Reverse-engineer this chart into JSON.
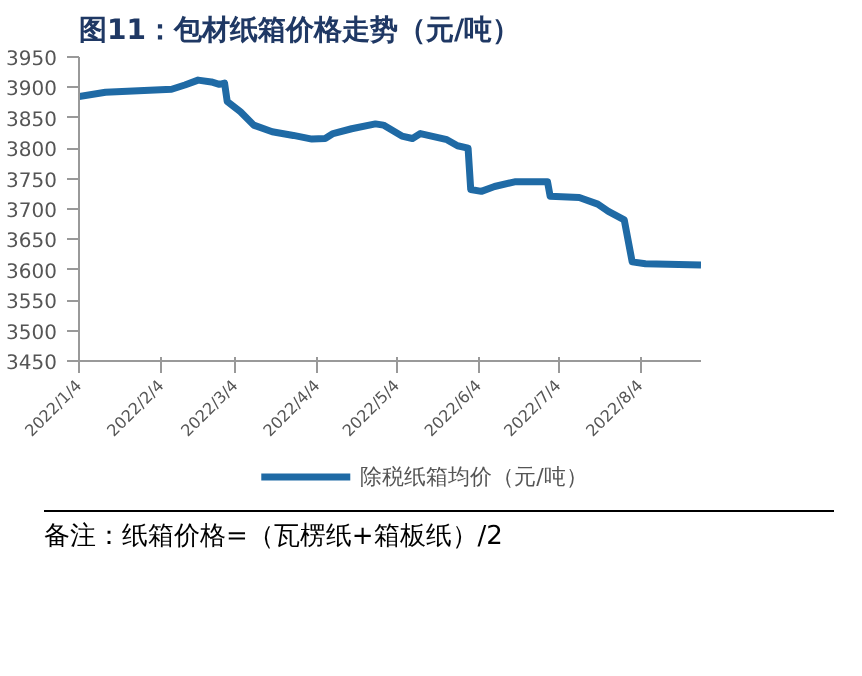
{
  "chart_data": {
    "type": "line",
    "title": "图11：包材纸箱价格走势（元/吨）",
    "annotations": [
      "备注：纸箱价格=（瓦楞纸+箱板纸）/2"
    ],
    "x": [
      "2022-01-04",
      "2022-01-14",
      "2022-02-08",
      "2022-02-13",
      "2022-02-18",
      "2022-02-23",
      "2022-02-26",
      "2022-02-28",
      "2022-03-01",
      "2022-03-06",
      "2022-03-11",
      "2022-03-18",
      "2022-03-26",
      "2022-04-02",
      "2022-04-07",
      "2022-04-10",
      "2022-04-17",
      "2022-04-26",
      "2022-04-29",
      "2022-05-06",
      "2022-05-10",
      "2022-05-13",
      "2022-05-23",
      "2022-05-27",
      "2022-05-31",
      "2022-06-01",
      "2022-06-05",
      "2022-06-10",
      "2022-06-18",
      "2022-06-30",
      "2022-07-01",
      "2022-07-12",
      "2022-07-19",
      "2022-07-23",
      "2022-07-29",
      "2022-08-01",
      "2022-08-06",
      "2022-08-27"
    ],
    "series": [
      {
        "name": "除税纸箱均价（元/吨）",
        "color": "#1f6aa5",
        "values": [
          3885,
          3892,
          3897,
          3904,
          3912,
          3909,
          3905,
          3907,
          3877,
          3860,
          3838,
          3827,
          3821,
          3815,
          3816,
          3824,
          3832,
          3840,
          3838,
          3820,
          3816,
          3824,
          3814,
          3804,
          3800,
          3732,
          3729,
          3737,
          3745,
          3745,
          3721,
          3719,
          3708,
          3696,
          3682,
          3613,
          3610,
          3608
        ]
      }
    ],
    "xlim": [
      "2022-01-04",
      "2022-08-27"
    ],
    "xticks": [
      {
        "value": "2022-01-04",
        "label": "2022/1/4"
      },
      {
        "value": "2022-02-04",
        "label": "2022/2/4"
      },
      {
        "value": "2022-03-04",
        "label": "2022/3/4"
      },
      {
        "value": "2022-04-04",
        "label": "2022/4/4"
      },
      {
        "value": "2022-05-04",
        "label": "2022/5/4"
      },
      {
        "value": "2022-06-04",
        "label": "2022/6/4"
      },
      {
        "value": "2022-07-04",
        "label": "2022/7/4"
      },
      {
        "value": "2022-08-04",
        "label": "2022/8/4"
      }
    ],
    "ylim": [
      3450,
      3950
    ],
    "yticks": [
      3450,
      3500,
      3550,
      3600,
      3650,
      3700,
      3750,
      3800,
      3850,
      3900,
      3950
    ],
    "grid": false,
    "legend": "bottom",
    "marker": "none",
    "line_style": "solid"
  }
}
